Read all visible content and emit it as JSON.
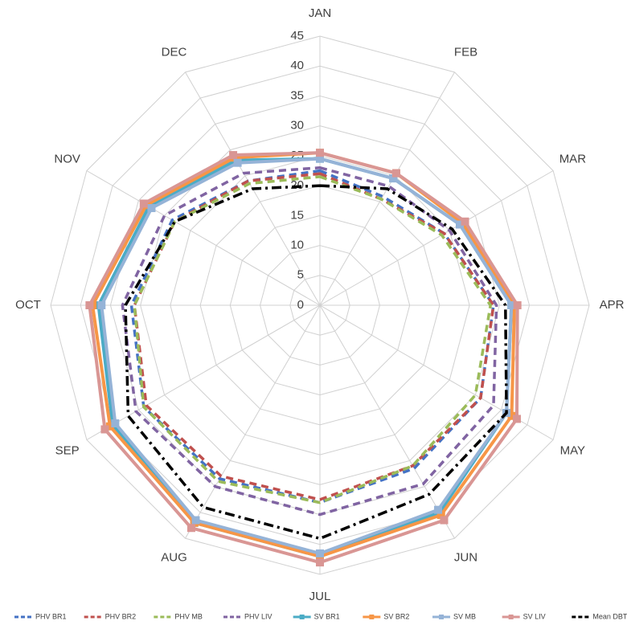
{
  "chart_data": {
    "type": "radar",
    "categories": [
      "JAN",
      "FEB",
      "MAR",
      "APR",
      "MAY",
      "JUN",
      "JUL",
      "AUG",
      "SEP",
      "OCT",
      "NOV",
      "DEC"
    ],
    "ylim": [
      0,
      45
    ],
    "yticks": [
      0,
      5,
      10,
      15,
      20,
      25,
      30,
      35,
      40,
      45
    ],
    "grid": true,
    "legend": "bottom",
    "series": [
      {
        "name": "PHV BR1",
        "color": "#4472c4",
        "dash": "dash",
        "values": [
          22.5,
          21,
          24,
          29,
          31,
          31.5,
          33,
          33.5,
          34,
          31.5,
          28.5,
          24
        ]
      },
      {
        "name": "PHV BR2",
        "color": "#c0504d",
        "dash": "dash",
        "values": [
          22,
          20.5,
          24,
          29,
          31,
          31,
          32.5,
          33,
          33.5,
          31,
          28,
          24
        ]
      },
      {
        "name": "PHV MB",
        "color": "#9bbb59",
        "dash": "dash",
        "values": [
          21.5,
          20.5,
          23.5,
          28.5,
          30,
          31,
          33,
          34,
          34,
          31,
          28,
          23.5
        ]
      },
      {
        "name": "PHV LIV",
        "color": "#8064a2",
        "dash": "dash",
        "values": [
          23,
          23,
          25,
          29.5,
          33.5,
          34.5,
          35,
          35,
          35.5,
          33,
          30,
          25.5
        ]
      },
      {
        "name": "SV BR1",
        "color": "#4bacc6",
        "dash": "solid",
        "marker": "square",
        "values": [
          24.5,
          24.5,
          27,
          32,
          36,
          40,
          42,
          42,
          40,
          37,
          33,
          28
        ]
      },
      {
        "name": "SV BR2",
        "color": "#f79646",
        "dash": "solid",
        "marker": "square",
        "values": [
          25.5,
          25.5,
          27.5,
          32.5,
          37,
          40.5,
          42,
          42,
          40.5,
          38,
          33.5,
          28.5
        ]
      },
      {
        "name": "SV MB",
        "color": "#95b3d7",
        "dash": "solid",
        "marker": "square",
        "values": [
          24.5,
          24.5,
          27,
          32,
          36,
          39.5,
          41.5,
          41.5,
          39.5,
          36.5,
          32.5,
          27.5
        ]
      },
      {
        "name": "SV LIV",
        "color": "#d99694",
        "dash": "solid",
        "marker": "square",
        "values": [
          25.5,
          25.5,
          28,
          33,
          38,
          41.5,
          43,
          43,
          41.5,
          38.5,
          34,
          29
        ]
      },
      {
        "name": "Mean DBT",
        "color": "#000000",
        "dash": "dashdot",
        "values": [
          20,
          22.5,
          25.5,
          31,
          36,
          36.5,
          39,
          39,
          37,
          32.5,
          28,
          22.5
        ]
      }
    ]
  }
}
